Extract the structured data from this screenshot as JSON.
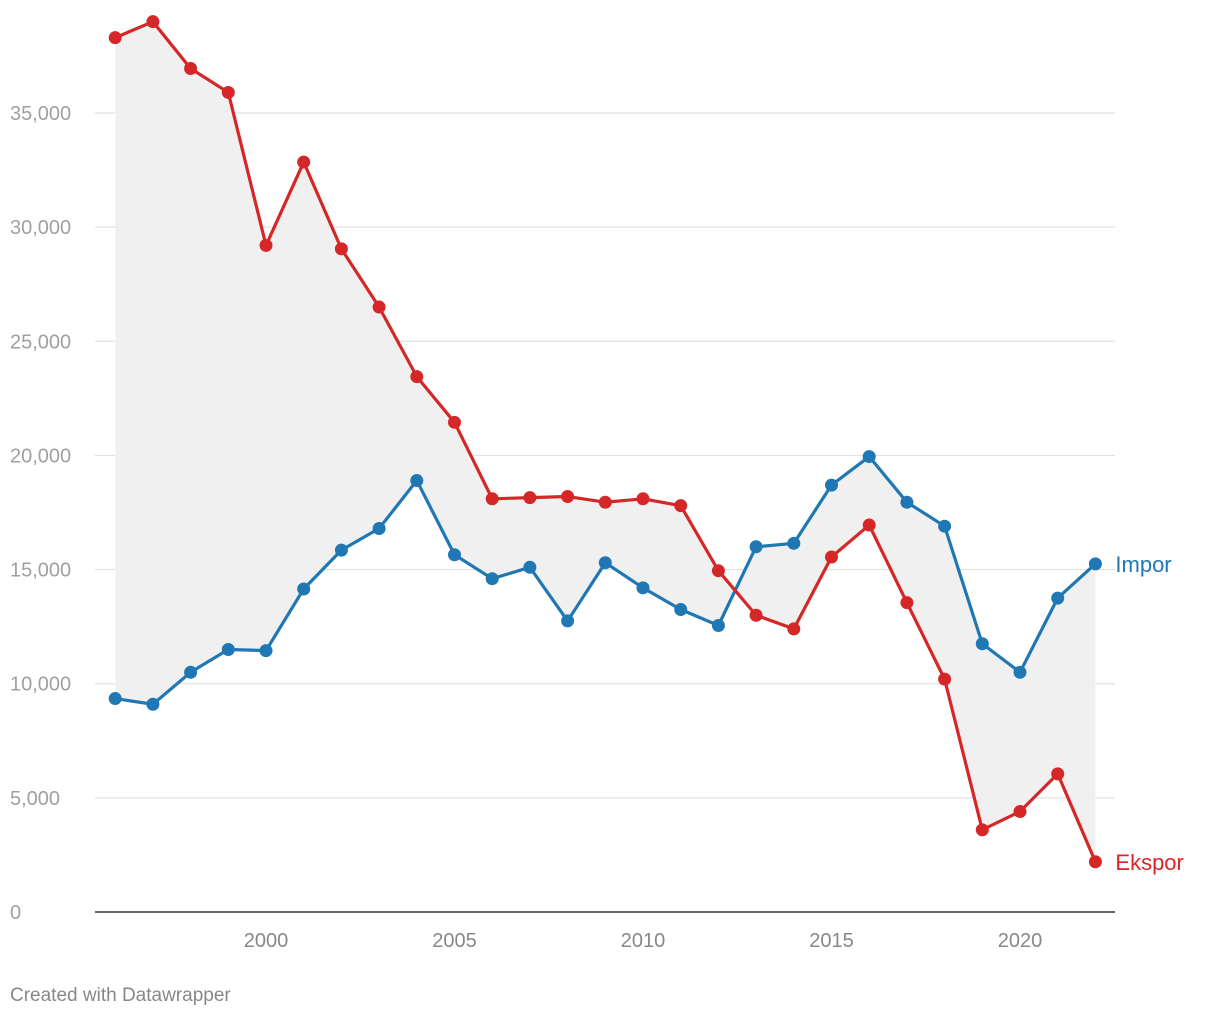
{
  "chart_data": {
    "type": "line",
    "title": "",
    "xlabel": "",
    "ylabel": "",
    "xlim": [
      1995.5,
      2022.5
    ],
    "ylim": [
      0,
      40000
    ],
    "y_ticks": [
      0,
      5000,
      10000,
      15000,
      20000,
      25000,
      30000,
      35000
    ],
    "x_ticks": [
      2000,
      2005,
      2010,
      2015,
      2020
    ],
    "grid": true,
    "legend": "direct labels at line ends",
    "fill_between": "light-gray area between the two series",
    "x": [
      1996,
      1997,
      1998,
      1999,
      2000,
      2001,
      2002,
      2003,
      2004,
      2005,
      2006,
      2007,
      2008,
      2009,
      2010,
      2011,
      2012,
      2013,
      2014,
      2015,
      2016,
      2017,
      2018,
      2019,
      2020,
      2021,
      2022
    ],
    "series": [
      {
        "name": "Impor",
        "color": "#1f77b4",
        "values": [
          9350,
          9100,
          10500,
          11500,
          11450,
          14150,
          15850,
          16800,
          18900,
          15650,
          14600,
          15100,
          12750,
          15300,
          14200,
          13250,
          12550,
          16000,
          16150,
          18700,
          19950,
          17950,
          16900,
          11750,
          10500,
          13750,
          15250
        ]
      },
      {
        "name": "Ekspor",
        "color": "#d62728",
        "values": [
          38300,
          39000,
          36950,
          35900,
          29200,
          32850,
          29050,
          26500,
          23450,
          21450,
          18100,
          18150,
          18200,
          17950,
          18100,
          17800,
          14950,
          13000,
          12400,
          15550,
          16950,
          13550,
          10200,
          3600,
          4400,
          6050,
          2200
        ]
      }
    ]
  },
  "footer": {
    "credit": "Created with Datawrapper"
  }
}
